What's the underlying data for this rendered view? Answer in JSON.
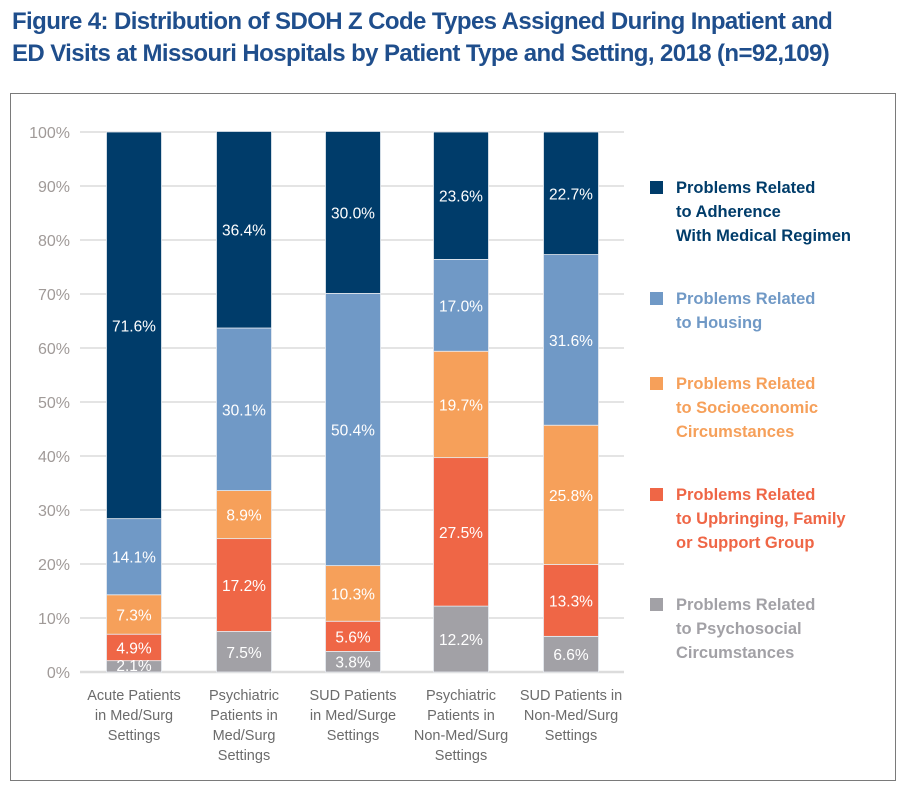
{
  "title_line1": "Figure 4: Distribution of SDOH Z Code Types Assigned During Inpatient and",
  "title_line2": "ED Visits at Missouri Hospitals by Patient Type and Setting, 2018 (n=92,109)",
  "chart_data": {
    "type": "bar",
    "stacked": true,
    "title": "Figure 4: Distribution of SDOH Z Code Types Assigned During Inpatient and ED Visits at Missouri Hospitals by Patient Type and Setting, 2018 (n=92,109)",
    "xlabel": "",
    "ylabel": "",
    "ylim": [
      0,
      100
    ],
    "yticks": [
      "0%",
      "10%",
      "20%",
      "30%",
      "40%",
      "50%",
      "60%",
      "70%",
      "80%",
      "90%",
      "100%"
    ],
    "grid": true,
    "legend_position": "right",
    "categories": [
      [
        "Acute Patients",
        "in Med/Surg",
        "Settings"
      ],
      [
        "Psychiatric",
        "Patients in",
        "Med/Surg",
        "Settings"
      ],
      [
        "SUD Patients",
        "in Med/Surge",
        "Settings"
      ],
      [
        "Psychiatric",
        "Patients in",
        "Non-Med/Surg",
        "Settings"
      ],
      [
        "SUD Patients in",
        "Non-Med/Surg",
        "Settings"
      ]
    ],
    "series": [
      {
        "name": "Problems Related to Psychosocial Circumstances",
        "legend_lines": "Problems Related\nto Psychosocial\nCircumstances",
        "color": "#a2a1a6",
        "values": [
          2.1,
          7.5,
          3.8,
          12.2,
          6.6
        ],
        "labels": [
          "2.1%",
          "7.5%",
          "3.8%",
          "12.2%",
          "6.6%"
        ]
      },
      {
        "name": "Problems Related to Upbringing, Family or Support Group",
        "legend_lines": "Problems Related\nto Upbringing, Family\nor Support Group",
        "color": "#ef6646",
        "values": [
          4.9,
          17.2,
          5.6,
          27.5,
          13.3
        ],
        "labels": [
          "4.9%",
          "17.2%",
          "5.6%",
          "27.5%",
          "13.3%"
        ]
      },
      {
        "name": "Problems Related to Socioeconomic Circumstances",
        "legend_lines": "Problems Related\nto Socioeconomic\nCircumstances",
        "color": "#f6a05a",
        "values": [
          7.3,
          8.9,
          10.3,
          19.7,
          25.8
        ],
        "labels": [
          "7.3%",
          "8.9%",
          "10.3%",
          "19.7%",
          "25.8%"
        ]
      },
      {
        "name": "Problems Related to Housing",
        "legend_lines": "Problems Related\nto Housing",
        "color": "#7099c6",
        "values": [
          14.1,
          30.1,
          50.4,
          17.0,
          31.6
        ],
        "labels": [
          "14.1%",
          "30.1%",
          "50.4%",
          "17.0%",
          "31.6%"
        ]
      },
      {
        "name": "Problems Related to Adherence With Medical Regimen",
        "legend_lines": "Problems Related\nto Adherence\nWith Medical Regimen",
        "color": "#003c6a",
        "values": [
          71.6,
          36.4,
          30.0,
          23.6,
          22.7
        ],
        "labels": [
          "71.6%",
          "36.4%",
          "30.0%",
          "23.6%",
          "22.7%"
        ]
      }
    ],
    "legend_order": [
      4,
      3,
      2,
      1,
      0
    ],
    "legend_text_colors": [
      "#003c6a",
      "#7099c6",
      "#f6a05a",
      "#ef6646",
      "#a2a1a6"
    ]
  }
}
